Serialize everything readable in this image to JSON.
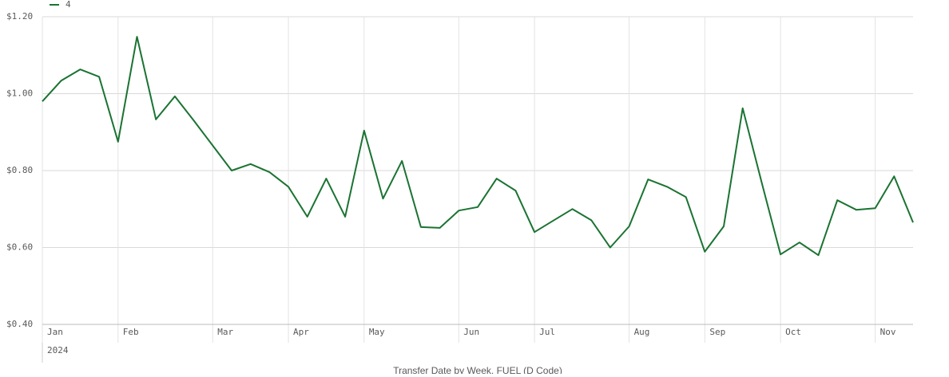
{
  "chart_data": {
    "type": "line",
    "x_title": "Transfer Date by Week, FUEL (D Code)",
    "year_label": "2024",
    "categories": [
      "Jan",
      null,
      null,
      null,
      "Feb",
      null,
      null,
      null,
      null,
      "Mar",
      null,
      null,
      null,
      "Apr",
      null,
      null,
      null,
      "May",
      null,
      null,
      null,
      null,
      "Jun",
      null,
      null,
      null,
      "Jul",
      null,
      null,
      null,
      null,
      "Aug",
      null,
      null,
      null,
      "Sep",
      null,
      null,
      null,
      "Oct",
      null,
      null,
      null,
      null,
      "Nov",
      null,
      null
    ],
    "series": [
      {
        "name": "4",
        "color": "#1a7332",
        "values": [
          0.98,
          1.034,
          1.063,
          1.044,
          0.875,
          1.148,
          0.933,
          0.993,
          0.93,
          0.865,
          0.8,
          0.817,
          0.796,
          0.758,
          0.68,
          0.779,
          0.68,
          0.904,
          0.727,
          0.825,
          0.653,
          0.651,
          0.696,
          0.705,
          0.779,
          0.748,
          0.64,
          0.67,
          0.7,
          0.671,
          0.6,
          0.655,
          0.777,
          0.758,
          0.731,
          0.589,
          0.655,
          0.962,
          0.77,
          0.582,
          0.613,
          0.58,
          0.723,
          0.698,
          0.702,
          0.785,
          0.665
        ]
      }
    ],
    "ylim": [
      0.4,
      1.2
    ],
    "yticks": [
      {
        "value": 0.4,
        "label": "$0.40"
      },
      {
        "value": 0.6,
        "label": "$0.60"
      },
      {
        "value": 0.8,
        "label": "$0.80"
      },
      {
        "value": 1.0,
        "label": "$1.00"
      },
      {
        "value": 1.2,
        "label": "$1.20"
      }
    ],
    "grid": true,
    "legend": "top-left"
  }
}
